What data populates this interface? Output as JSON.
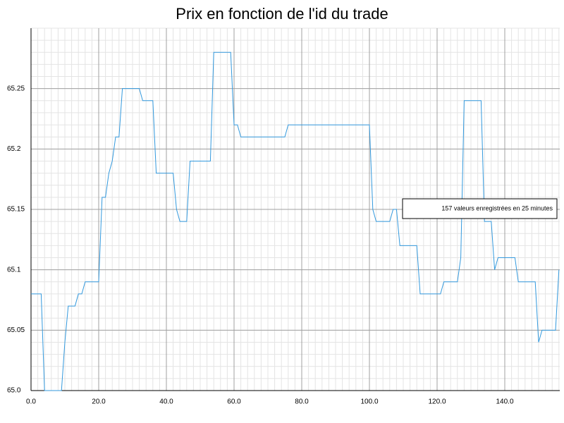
{
  "chart_data": {
    "type": "line",
    "title": "Prix en fonction de l'id du trade",
    "annotation": "157 valeurs enregistrées en 25 minutes",
    "x": [
      0,
      1,
      2,
      3,
      4,
      5,
      6,
      7,
      8,
      9,
      10,
      11,
      12,
      13,
      14,
      15,
      16,
      17,
      18,
      19,
      20,
      21,
      22,
      23,
      24,
      25,
      26,
      27,
      28,
      29,
      30,
      31,
      32,
      33,
      34,
      35,
      36,
      37,
      38,
      39,
      40,
      41,
      42,
      43,
      44,
      45,
      46,
      47,
      48,
      49,
      50,
      51,
      52,
      53,
      54,
      55,
      56,
      57,
      58,
      59,
      60,
      61,
      62,
      63,
      64,
      65,
      66,
      67,
      68,
      69,
      70,
      71,
      72,
      73,
      74,
      75,
      76,
      77,
      78,
      79,
      80,
      81,
      82,
      83,
      84,
      85,
      86,
      87,
      88,
      89,
      90,
      91,
      92,
      93,
      94,
      95,
      96,
      97,
      98,
      99,
      100,
      101,
      102,
      103,
      104,
      105,
      106,
      107,
      108,
      109,
      110,
      111,
      112,
      113,
      114,
      115,
      116,
      117,
      118,
      119,
      120,
      121,
      122,
      123,
      124,
      125,
      126,
      127,
      128,
      129,
      130,
      131,
      132,
      133,
      134,
      135,
      136,
      137,
      138,
      139,
      140,
      141,
      142,
      143,
      144,
      145,
      146,
      147,
      148,
      149,
      150,
      151,
      152,
      153,
      154,
      155,
      156
    ],
    "series": [
      {
        "color": "#3399dd",
        "values": [
          65.08,
          65.08,
          65.08,
          65.08,
          65.0,
          65.0,
          65.0,
          65.0,
          65.0,
          65.0,
          65.04,
          65.07,
          65.07,
          65.07,
          65.08,
          65.08,
          65.09,
          65.09,
          65.09,
          65.09,
          65.09,
          65.16,
          65.16,
          65.18,
          65.19,
          65.21,
          65.21,
          65.25,
          65.25,
          65.25,
          65.25,
          65.25,
          65.25,
          65.24,
          65.24,
          65.24,
          65.24,
          65.18,
          65.18,
          65.18,
          65.18,
          65.18,
          65.18,
          65.15,
          65.14,
          65.14,
          65.14,
          65.19,
          65.19,
          65.19,
          65.19,
          65.19,
          65.19,
          65.19,
          65.28,
          65.28,
          65.28,
          65.28,
          65.28,
          65.28,
          65.22,
          65.22,
          65.21,
          65.21,
          65.21,
          65.21,
          65.21,
          65.21,
          65.21,
          65.21,
          65.21,
          65.21,
          65.21,
          65.21,
          65.21,
          65.21,
          65.22,
          65.22,
          65.22,
          65.22,
          65.22,
          65.22,
          65.22,
          65.22,
          65.22,
          65.22,
          65.22,
          65.22,
          65.22,
          65.22,
          65.22,
          65.22,
          65.22,
          65.22,
          65.22,
          65.22,
          65.22,
          65.22,
          65.22,
          65.22,
          65.22,
          65.15,
          65.14,
          65.14,
          65.14,
          65.14,
          65.14,
          65.15,
          65.15,
          65.12,
          65.12,
          65.12,
          65.12,
          65.12,
          65.12,
          65.08,
          65.08,
          65.08,
          65.08,
          65.08,
          65.08,
          65.08,
          65.09,
          65.09,
          65.09,
          65.09,
          65.09,
          65.11,
          65.24,
          65.24,
          65.24,
          65.24,
          65.24,
          65.24,
          65.14,
          65.14,
          65.14,
          65.1,
          65.11,
          65.11,
          65.11,
          65.11,
          65.11,
          65.11,
          65.09,
          65.09,
          65.09,
          65.09,
          65.09,
          65.09,
          65.04,
          65.05,
          65.05,
          65.05,
          65.05,
          65.05,
          65.1
        ]
      }
    ],
    "xlim": [
      0,
      156.25
    ],
    "xticks": [
      {
        "value": 0,
        "label": "0.0"
      },
      {
        "value": 20,
        "label": "20.0"
      },
      {
        "value": 40,
        "label": "40.0"
      },
      {
        "value": 60,
        "label": "60.0"
      },
      {
        "value": 80,
        "label": "80.0"
      },
      {
        "value": 100,
        "label": "100.0"
      },
      {
        "value": 120,
        "label": "120.0"
      },
      {
        "value": 140,
        "label": "140.0"
      }
    ],
    "ylim": [
      65.0,
      65.3
    ],
    "yticks": [
      {
        "value": 65.0,
        "label": "65.0"
      },
      65.05,
      65.1,
      65.15,
      65.2,
      65.25
    ],
    "grid": true
  }
}
